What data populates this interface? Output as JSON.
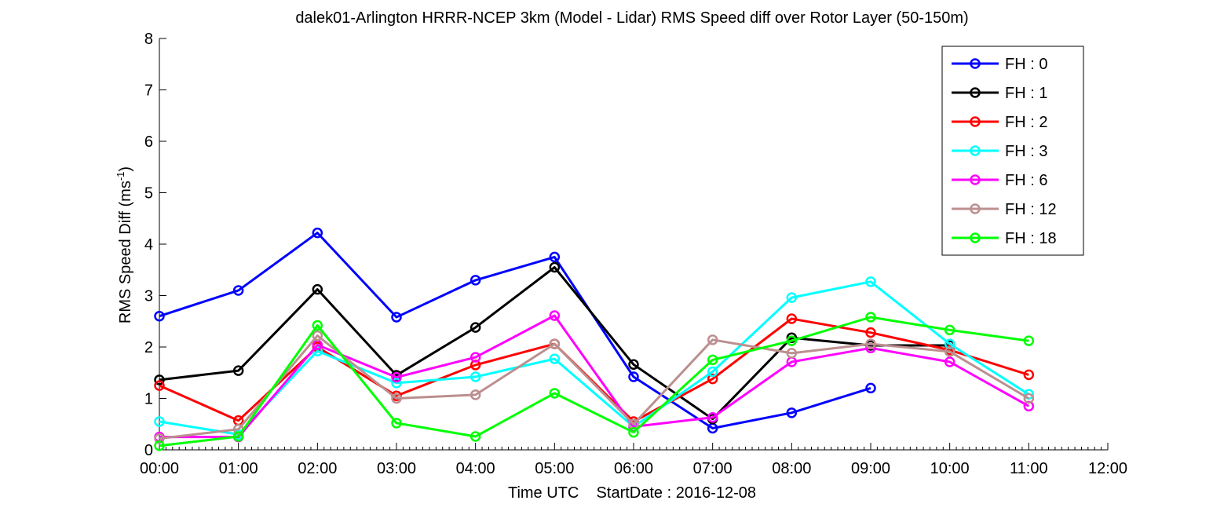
{
  "chart_data": {
    "type": "line",
    "title": "dalek01-Arlington HRRR-NCEP 3km (Model - Lidar) RMS Speed diff over Rotor Layer (50-150m)",
    "xlabel": "Time UTC    StartDate : 2016-12-08",
    "ylabel_main": "RMS Speed Diff (ms",
    "ylabel_sup": "-1",
    "ylabel_close": ")",
    "xlim": [
      0,
      12
    ],
    "ylim": [
      0,
      8
    ],
    "x_ticks": [
      "00:00",
      "01:00",
      "02:00",
      "03:00",
      "04:00",
      "05:00",
      "06:00",
      "07:00",
      "08:00",
      "09:00",
      "10:00",
      "11:00",
      "12:00"
    ],
    "y_ticks": [
      "0",
      "1",
      "2",
      "3",
      "4",
      "5",
      "6",
      "7",
      "8"
    ],
    "grid": false,
    "legend_position": "top-right",
    "x": [
      "00:00",
      "01:00",
      "02:00",
      "03:00",
      "04:00",
      "05:00",
      "06:00",
      "07:00",
      "08:00",
      "09:00",
      "10:00",
      "11:00"
    ],
    "series": [
      {
        "name": "FH : 0",
        "color": "#0000ff",
        "values": [
          2.6,
          3.1,
          4.22,
          2.58,
          3.3,
          3.75,
          1.42,
          0.42,
          0.72,
          1.2,
          null,
          null
        ]
      },
      {
        "name": "FH : 1",
        "color": "#000000",
        "values": [
          1.36,
          1.54,
          3.12,
          1.45,
          2.38,
          3.55,
          1.66,
          0.6,
          2.18,
          2.03,
          2.03,
          null
        ]
      },
      {
        "name": "FH : 2",
        "color": "#ff0000",
        "values": [
          1.25,
          0.57,
          2.0,
          1.05,
          1.65,
          2.06,
          0.55,
          1.38,
          2.55,
          2.28,
          1.94,
          1.46
        ]
      },
      {
        "name": "FH : 3",
        "color": "#00ffff",
        "values": [
          0.55,
          0.3,
          1.92,
          1.3,
          1.42,
          1.77,
          0.45,
          1.52,
          2.96,
          3.27,
          2.06,
          1.08
        ]
      },
      {
        "name": "FH : 6",
        "color": "#ff00ff",
        "values": [
          0.25,
          0.25,
          2.04,
          1.41,
          1.8,
          2.61,
          0.45,
          0.63,
          1.71,
          1.98,
          1.71,
          0.85
        ]
      },
      {
        "name": "FH : 12",
        "color": "#bc8f8f",
        "values": [
          0.22,
          0.4,
          2.22,
          1.0,
          1.07,
          2.06,
          0.5,
          2.14,
          1.88,
          2.06,
          1.91,
          1.0
        ]
      },
      {
        "name": "FH : 18",
        "color": "#00ff00",
        "values": [
          0.08,
          0.26,
          2.42,
          0.52,
          0.26,
          1.1,
          0.34,
          1.75,
          2.12,
          2.58,
          2.33,
          2.12
        ]
      }
    ]
  }
}
